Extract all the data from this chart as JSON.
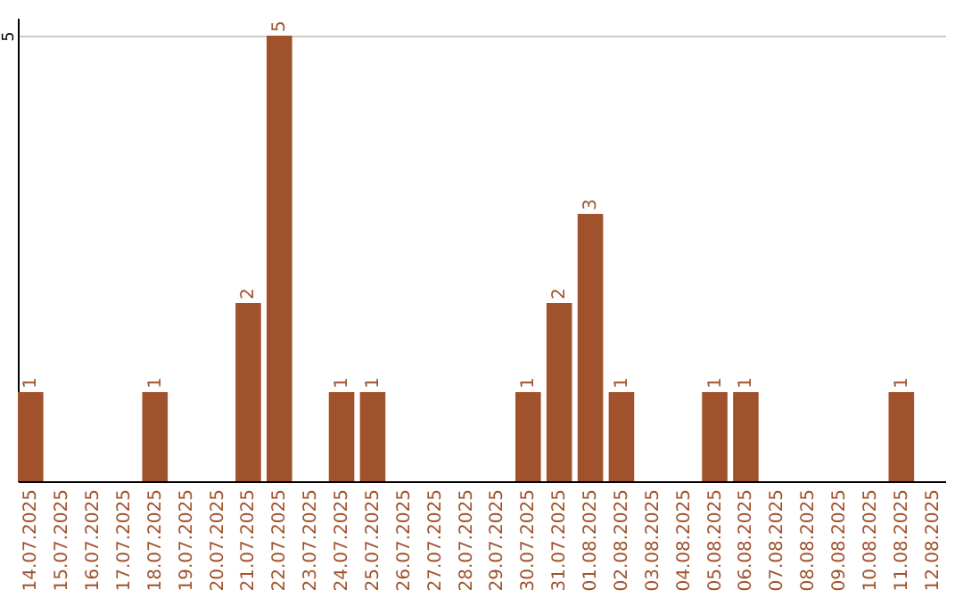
{
  "chart_data": {
    "type": "bar",
    "categories": [
      "14.07.2025",
      "15.07.2025",
      "16.07.2025",
      "17.07.2025",
      "18.07.2025",
      "19.07.2025",
      "20.07.2025",
      "21.07.2025",
      "22.07.2025",
      "23.07.2025",
      "24.07.2025",
      "25.07.2025",
      "26.07.2025",
      "27.07.2025",
      "28.07.2025",
      "29.07.2025",
      "30.07.2025",
      "31.07.2025",
      "01.08.2025",
      "02.08.2025",
      "03.08.2025",
      "04.08.2025",
      "05.08.2025",
      "06.08.2025",
      "07.08.2025",
      "08.08.2025",
      "09.08.2025",
      "10.08.2025",
      "11.08.2025",
      "12.08.2025"
    ],
    "values": [
      1,
      0,
      0,
      0,
      1,
      0,
      0,
      2,
      5,
      0,
      1,
      1,
      0,
      0,
      0,
      0,
      1,
      2,
      3,
      1,
      0,
      0,
      1,
      1,
      0,
      0,
      0,
      0,
      1,
      0
    ],
    "value_labels": [
      "1",
      null,
      null,
      null,
      "1",
      null,
      null,
      "2",
      "5",
      null,
      "1",
      "1",
      null,
      null,
      null,
      null,
      "1",
      "2",
      "3",
      "1",
      null,
      null,
      "1",
      "1",
      null,
      null,
      null,
      null,
      "1",
      null
    ],
    "color": "#a0522d",
    "ylim": [
      0,
      5.2
    ],
    "yticks": [
      5
    ],
    "grid": "y"
  }
}
